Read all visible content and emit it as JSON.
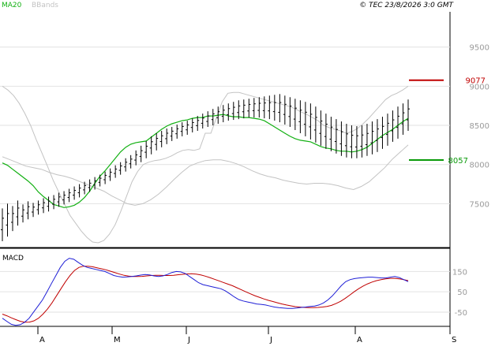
{
  "header": {
    "legend_ma": "MA20",
    "legend_bbands": "BBands",
    "copyright": "© TEC 23/8/2026 3:0 GMT"
  },
  "macd_panel": {
    "label": "MACD"
  },
  "colors": {
    "candles": "#000000",
    "ma20": "#12b012",
    "bbands": "#c3c3c3",
    "resistance": "#c00000",
    "support": "#0a9a0a",
    "macd": "#1f1fd6",
    "signal": "#c00000",
    "grid": "#e2e2e2",
    "axis": "#000000"
  },
  "chart_data": [
    {
      "type": "candlestick",
      "panel": "price",
      "y_ticks": [
        7500,
        8000,
        8500,
        9000,
        9500
      ],
      "ylim": [
        6950,
        9950
      ],
      "x_ticks": [
        "A",
        "M",
        "J",
        "J",
        "A",
        "S"
      ],
      "series": [
        {
          "name": "MA20",
          "values": [
            8020,
            7990,
            7940,
            7890,
            7840,
            7790,
            7730,
            7650,
            7590,
            7540,
            7490,
            7470,
            7450,
            7460,
            7480,
            7520,
            7580,
            7660,
            7760,
            7850,
            7920,
            8000,
            8080,
            8160,
            8220,
            8260,
            8280,
            8290,
            8300,
            8350,
            8400,
            8450,
            8490,
            8520,
            8540,
            8560,
            8570,
            8590,
            8600,
            8600,
            8620,
            8620,
            8630,
            8640,
            8620,
            8610,
            8610,
            8600,
            8600,
            8590,
            8580,
            8560,
            8520,
            8480,
            8440,
            8400,
            8360,
            8330,
            8310,
            8300,
            8290,
            8260,
            8230,
            8210,
            8200,
            8180,
            8170,
            8170,
            8160,
            8170,
            8190,
            8220,
            8270,
            8320,
            8370,
            8410,
            8450,
            8500,
            8550,
            8590
          ]
        },
        {
          "name": "BBands",
          "values": [
            9000,
            8950,
            8880,
            8780,
            8650,
            8500,
            8320,
            8150,
            7980,
            7800,
            7650,
            7500,
            7350,
            7250,
            7150,
            7070,
            7010,
            7000,
            7030,
            7110,
            7230,
            7400,
            7590,
            7780,
            7910,
            8000,
            8030,
            8050,
            8060,
            8080,
            8110,
            8150,
            8180,
            8190,
            8180,
            8200,
            8400,
            8400,
            8600,
            8800,
            8910,
            8920,
            8920,
            8900,
            8880,
            8860,
            8840,
            8820,
            8800,
            8780,
            8760,
            8740,
            8710,
            8670,
            8640,
            8600,
            8560,
            8500,
            8470,
            8450,
            8430,
            8400,
            8420,
            8460,
            8520,
            8590,
            8670,
            8750,
            8830,
            8880,
            8910,
            8950,
            9000
          ]
        },
        {
          "name": "BBands",
          "values": [
            8100,
            8060,
            8020,
            7980,
            7960,
            7940,
            7900,
            7870,
            7850,
            7820,
            7780,
            7740,
            7700,
            7660,
            7600,
            7550,
            7500,
            7480,
            7500,
            7550,
            7620,
            7710,
            7810,
            7900,
            7980,
            8020,
            8050,
            8060,
            8060,
            8040,
            8010,
            7970,
            7920,
            7880,
            7850,
            7830,
            7800,
            7780,
            7760,
            7750,
            7760,
            7760,
            7750,
            7730,
            7700,
            7680,
            7720,
            7780,
            7870,
            7960,
            8070,
            8160,
            8250
          ]
        }
      ],
      "candle_highs": [
        7440,
        7500,
        7470,
        7540,
        7490,
        7530,
        7510,
        7540,
        7570,
        7590,
        7610,
        7640,
        7660,
        7690,
        7720,
        7750,
        7780,
        7810,
        7840,
        7870,
        7910,
        7950,
        7990,
        8030,
        8080,
        8120,
        8180,
        8240,
        8300,
        8360,
        8400,
        8430,
        8460,
        8480,
        8510,
        8540,
        8560,
        8590,
        8620,
        8650,
        8680,
        8710,
        8740,
        8760,
        8780,
        8800,
        8820,
        8830,
        8840,
        8850,
        8860,
        8870,
        8880,
        8890,
        8900,
        8880,
        8860,
        8840,
        8820,
        8800,
        8780,
        8740,
        8690,
        8650,
        8610,
        8580,
        8550,
        8520,
        8500,
        8490,
        8500,
        8520,
        8550,
        8580,
        8610,
        8650,
        8690,
        8740,
        8780,
        8830
      ],
      "candle_lows": [
        7020,
        7080,
        7150,
        7220,
        7260,
        7300,
        7330,
        7360,
        7380,
        7400,
        7430,
        7460,
        7490,
        7520,
        7550,
        7580,
        7620,
        7650,
        7680,
        7720,
        7750,
        7790,
        7830,
        7870,
        7910,
        7950,
        7990,
        8030,
        8080,
        8130,
        8180,
        8220,
        8260,
        8300,
        8330,
        8360,
        8380,
        8410,
        8430,
        8460,
        8480,
        8500,
        8520,
        8540,
        8560,
        8570,
        8580,
        8590,
        8600,
        8600,
        8600,
        8590,
        8580,
        8560,
        8540,
        8510,
        8480,
        8440,
        8400,
        8360,
        8320,
        8280,
        8240,
        8200,
        8170,
        8140,
        8110,
        8090,
        8080,
        8080,
        8090,
        8110,
        8130,
        8160,
        8200,
        8240,
        8290,
        8330,
        8380,
        8430
      ],
      "resistance": 9077,
      "resistance_label": "9077",
      "support": 8057,
      "support_label": "8057"
    },
    {
      "type": "line",
      "panel": "macd",
      "y_ticks": [
        -50,
        50,
        150
      ],
      "y_tick_labels": [
        "-50",
        "50",
        "150"
      ],
      "ylim": [
        -120,
        260
      ],
      "series": [
        {
          "name": "MACD",
          "values": [
            -80,
            -95,
            -110,
            -115,
            -112,
            -100,
            -80,
            -50,
            -20,
            10,
            50,
            90,
            130,
            170,
            200,
            215,
            210,
            195,
            180,
            170,
            165,
            160,
            155,
            150,
            140,
            130,
            125,
            122,
            123,
            125,
            128,
            132,
            135,
            133,
            128,
            125,
            128,
            135,
            145,
            150,
            148,
            140,
            125,
            110,
            95,
            85,
            80,
            75,
            70,
            65,
            55,
            40,
            25,
            12,
            5,
            0,
            -5,
            -10,
            -12,
            -15,
            -20,
            -25,
            -28,
            -30,
            -32,
            -32,
            -30,
            -27,
            -25,
            -22,
            -20,
            -15,
            -5,
            10,
            30,
            55,
            80,
            100,
            110,
            115,
            118,
            120,
            122,
            122,
            120,
            118,
            118,
            122,
            125,
            120,
            110,
            100
          ]
        },
        {
          "name": "Signal",
          "values": [
            -60,
            -68,
            -78,
            -87,
            -95,
            -100,
            -99,
            -93,
            -80,
            -60,
            -35,
            -5,
            30,
            65,
            100,
            130,
            155,
            170,
            176,
            176,
            173,
            168,
            163,
            158,
            151,
            144,
            137,
            131,
            127,
            125,
            125,
            126,
            128,
            130,
            131,
            131,
            130,
            130,
            131,
            134,
            136,
            138,
            139,
            137,
            133,
            127,
            120,
            112,
            104,
            96,
            88,
            80,
            70,
            60,
            50,
            40,
            31,
            23,
            15,
            8,
            2,
            -4,
            -10,
            -15,
            -19,
            -23,
            -25,
            -27,
            -28,
            -28,
            -27,
            -25,
            -22,
            -17,
            -8,
            3,
            17,
            33,
            50,
            65,
            78,
            89,
            98,
            105,
            110,
            114,
            116,
            116,
            114,
            110,
            105
          ]
        }
      ]
    }
  ]
}
